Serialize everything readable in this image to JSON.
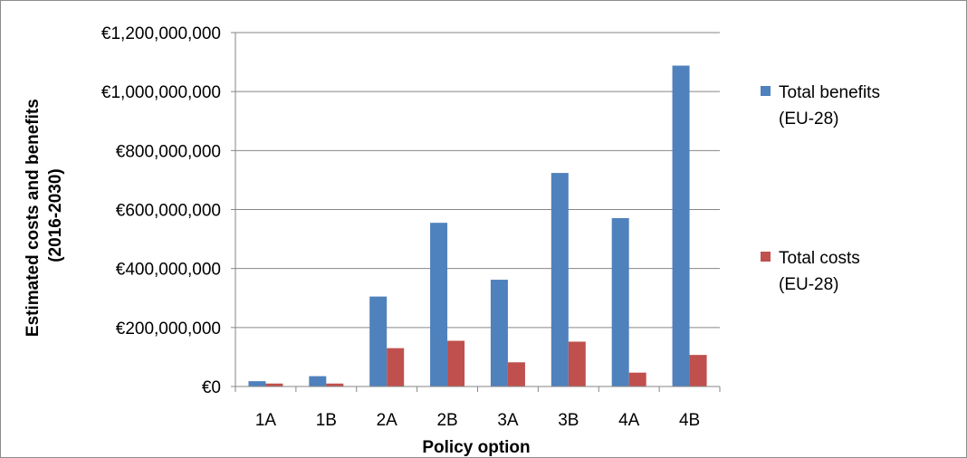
{
  "chart_data": {
    "type": "bar",
    "categories": [
      "1A",
      "1B",
      "2A",
      "2B",
      "3A",
      "3B",
      "4A",
      "4B"
    ],
    "series": [
      {
        "name": "Total benefits (EU-28)",
        "name_lines": [
          "Total benefits",
          "(EU-28)"
        ],
        "color": "#4f81bd",
        "values": [
          18000000,
          35000000,
          305000000,
          555000000,
          362000000,
          724000000,
          571000000,
          1088000000
        ]
      },
      {
        "name": "Total costs (EU-28)",
        "name_lines": [
          "Total costs",
          "(EU-28)"
        ],
        "color": "#c0504d",
        "values": [
          10000000,
          10000000,
          130000000,
          155000000,
          82000000,
          152000000,
          47000000,
          107000000
        ]
      }
    ],
    "xlabel": "Policy option",
    "ylabel_lines": [
      "Estimated costs and benefits",
      "(2016-2030)"
    ],
    "ylim": [
      0,
      1200000000
    ],
    "yticks": [
      0,
      200000000,
      400000000,
      600000000,
      800000000,
      1000000000,
      1200000000
    ],
    "ytick_labels": [
      "€0",
      "€200,000,000",
      "€400,000,000",
      "€600,000,000",
      "€800,000,000",
      "€1,000,000,000",
      "€1,200,000,000"
    ],
    "grid": true,
    "legend_position": "right"
  }
}
